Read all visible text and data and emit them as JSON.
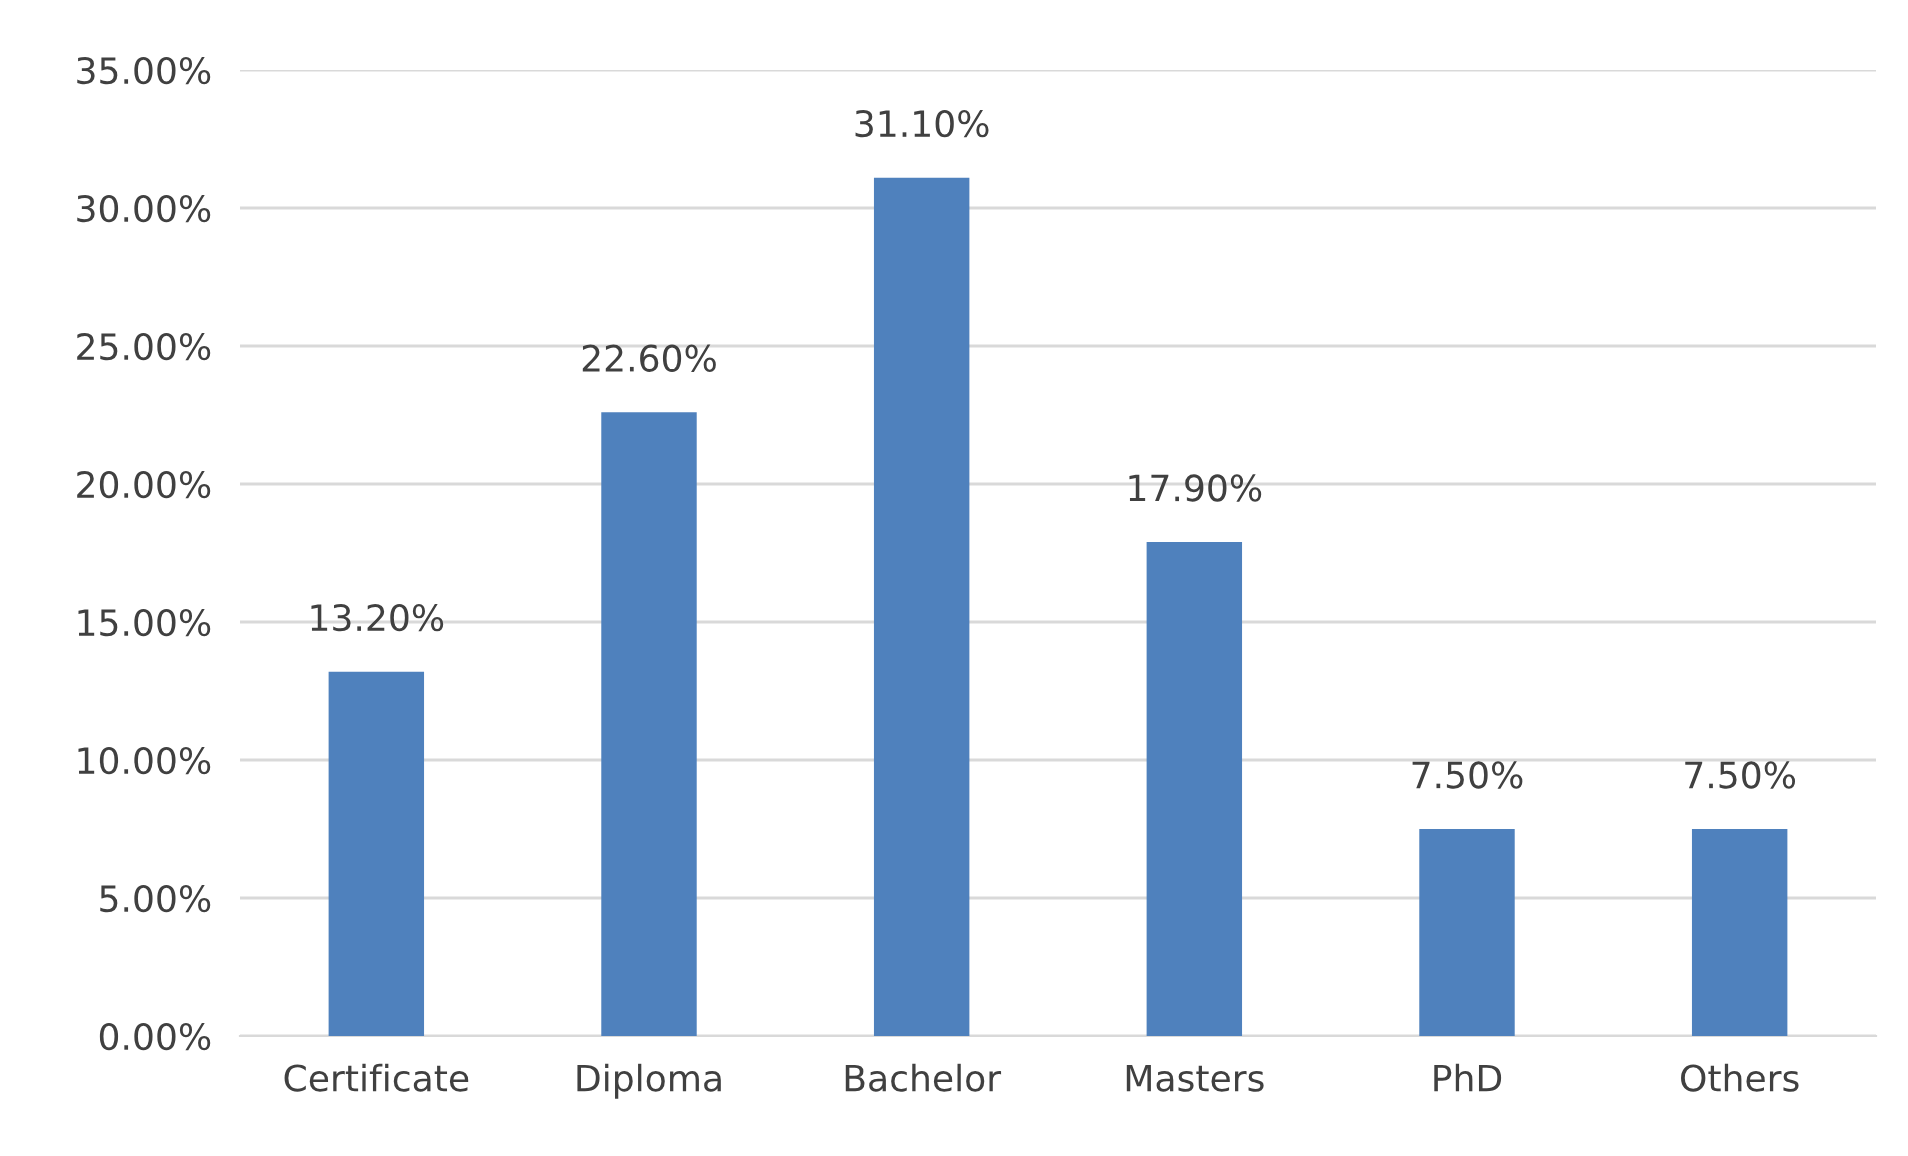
{
  "chart_data": {
    "type": "bar",
    "categories": [
      "Certificate",
      "Diploma",
      "Bachelor",
      "Masters",
      "PhD",
      "Others"
    ],
    "values": [
      13.2,
      22.6,
      31.1,
      17.9,
      7.5,
      7.5
    ],
    "value_labels": [
      "13.20%",
      "22.60%",
      "31.10%",
      "17.90%",
      "7.50%",
      "7.50%"
    ],
    "color": "#4f81bd",
    "ylim": [
      0,
      35
    ],
    "yticks": [
      {
        "value": 0,
        "label": "0.00%"
      },
      {
        "value": 5,
        "label": "5.00%"
      },
      {
        "value": 10,
        "label": "10.00%"
      },
      {
        "value": 15,
        "label": "15.00%"
      },
      {
        "value": 20,
        "label": "20.00%"
      },
      {
        "value": 25,
        "label": "25.00%"
      },
      {
        "value": 30,
        "label": "30.00%"
      },
      {
        "value": 35,
        "label": "35.00%"
      }
    ],
    "grid": "y",
    "legend": false
  }
}
